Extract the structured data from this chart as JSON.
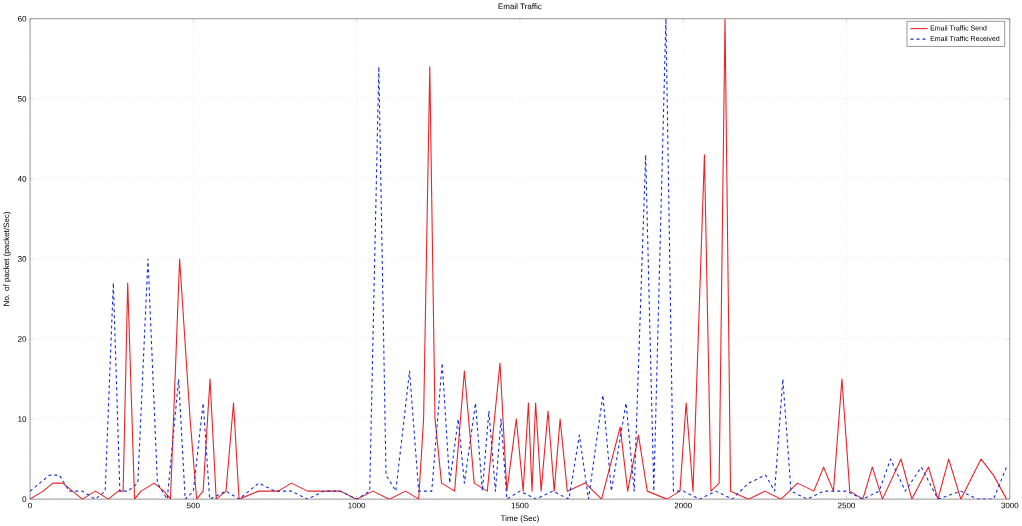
{
  "chart_data": {
    "type": "line",
    "title": "Email Traffic",
    "xlabel": "Time (Sec)",
    "ylabel": "No. of packet (packet/Sec)",
    "xlim": [
      0,
      3000
    ],
    "ylim": [
      0,
      60
    ],
    "xticks": [
      0,
      500,
      1000,
      1500,
      2000,
      2500,
      3000
    ],
    "yticks": [
      0,
      10,
      20,
      30,
      40,
      50,
      60
    ],
    "grid": true,
    "legend": "top right",
    "series": [
      {
        "name": "Email Traffic Send",
        "color": "#e8242a",
        "line_style": "solid",
        "x": [
          0,
          40,
          70,
          100,
          130,
          160,
          200,
          240,
          270,
          285,
          299,
          320,
          340,
          380,
          410,
          430,
          458,
          490,
          510,
          530,
          551,
          570,
          600,
          623,
          640,
          700,
          760,
          800,
          850,
          900,
          950,
          1000,
          1050,
          1100,
          1150,
          1190,
          1205,
          1224,
          1240,
          1260,
          1300,
          1330,
          1360,
          1400,
          1439,
          1460,
          1489,
          1510,
          1526,
          1537,
          1548,
          1565,
          1586,
          1605,
          1623,
          1645,
          1700,
          1750,
          1807,
          1830,
          1863,
          1890,
          1950,
          1990,
          2009,
          2030,
          2065,
          2085,
          2110,
          2128,
          2145,
          2200,
          2250,
          2300,
          2350,
          2400,
          2430,
          2460,
          2486,
          2510,
          2550,
          2579,
          2610,
          2667,
          2700,
          2751,
          2780,
          2813,
          2850,
          2912,
          2950,
          2990
        ],
        "values": [
          0,
          1,
          2,
          2,
          1,
          0,
          1,
          0,
          1,
          1,
          27,
          0,
          1,
          2,
          1,
          0,
          30,
          10,
          0,
          1,
          15,
          0,
          1,
          12,
          0,
          1,
          1,
          2,
          1,
          1,
          1,
          0,
          1,
          0,
          1,
          0,
          10,
          54,
          10,
          2,
          1,
          16,
          2,
          1,
          17,
          1,
          10,
          1,
          12,
          1,
          12,
          1,
          11,
          1,
          10,
          1,
          2,
          0,
          9,
          1,
          8,
          1,
          0,
          1,
          12,
          1,
          43,
          1,
          2,
          60,
          1,
          0,
          1,
          0,
          2,
          1,
          4,
          1,
          15,
          1,
          0,
          4,
          0,
          5,
          0,
          4,
          0,
          5,
          0,
          5,
          3,
          0
        ]
      },
      {
        "name": "Email Traffic  Received",
        "color": "#1a2ed4",
        "line_style": "dashed",
        "x": [
          0,
          30,
          60,
          90,
          120,
          160,
          200,
          230,
          255,
          275,
          300,
          330,
          361,
          390,
          420,
          455,
          475,
          500,
          530,
          550,
          600,
          640,
          700,
          750,
          800,
          850,
          900,
          950,
          1000,
          1040,
          1068,
          1090,
          1120,
          1162,
          1190,
          1230,
          1262,
          1285,
          1311,
          1330,
          1364,
          1385,
          1405,
          1425,
          1442,
          1460,
          1500,
          1550,
          1600,
          1650,
          1682,
          1710,
          1754,
          1780,
          1825,
          1850,
          1885,
          1910,
          1947,
          1970,
          2000,
          2050,
          2100,
          2150,
          2200,
          2252,
          2280,
          2305,
          2330,
          2380,
          2430,
          2500,
          2550,
          2600,
          2635,
          2680,
          2729,
          2780,
          2850,
          2900,
          2950,
          2990
        ],
        "values": [
          1,
          2,
          3,
          3,
          1,
          1,
          0,
          1,
          27,
          1,
          1,
          2,
          30,
          2,
          0,
          15,
          0,
          1,
          12,
          0,
          1,
          0,
          2,
          1,
          1,
          0,
          1,
          1,
          0,
          1,
          54,
          3,
          1,
          16,
          1,
          1,
          17,
          2,
          10,
          2,
          12,
          1,
          11,
          1,
          10,
          0,
          1,
          0,
          1,
          0,
          8,
          0,
          13,
          1,
          12,
          1,
          43,
          1,
          60,
          1,
          1,
          0,
          1,
          0,
          2,
          3,
          1,
          15,
          1,
          0,
          1,
          1,
          0,
          1,
          5,
          1,
          4,
          0,
          1,
          0,
          0,
          4
        ]
      }
    ]
  }
}
